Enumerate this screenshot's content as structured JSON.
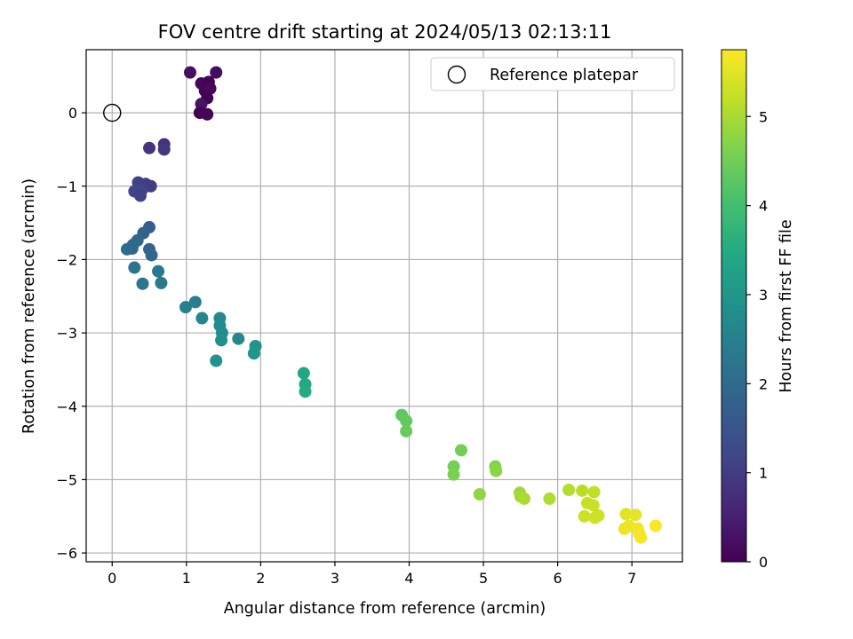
{
  "chart_data": {
    "type": "scatter",
    "title": "FOV centre drift starting at 2024/05/13 02:13:11",
    "xlabel": "Angular distance from reference (arcmin)",
    "ylabel": "Rotation from reference (arcmin)",
    "xlim": [
      -0.35,
      7.68
    ],
    "ylim": [
      -6.12,
      0.86
    ],
    "xticks": [
      0,
      1,
      2,
      3,
      4,
      5,
      6,
      7
    ],
    "yticks": [
      0,
      -1,
      -2,
      -3,
      -4,
      -5,
      -6
    ],
    "grid": true,
    "legend": {
      "position": "top-right",
      "entries": [
        "Reference platepar"
      ]
    },
    "reference_point": {
      "name": "Reference platepar",
      "x": 0,
      "y": 0
    },
    "colorbar": {
      "label": "Hours from first FF file",
      "colormap": "viridis",
      "range": [
        0,
        5.75
      ],
      "ticks": [
        0,
        1,
        2,
        3,
        4,
        5
      ]
    },
    "series": [
      {
        "points": [
          {
            "x": 1.05,
            "y": 0.55,
            "c": 0.25
          },
          {
            "x": 1.4,
            "y": 0.55,
            "c": 0.2
          },
          {
            "x": 1.2,
            "y": 0.4,
            "c": 0.1
          },
          {
            "x": 1.3,
            "y": 0.42,
            "c": 0.05
          },
          {
            "x": 1.25,
            "y": 0.3,
            "c": 0.08
          },
          {
            "x": 1.32,
            "y": 0.33,
            "c": 0.12
          },
          {
            "x": 1.28,
            "y": 0.2,
            "c": 0.0
          },
          {
            "x": 1.2,
            "y": 0.12,
            "c": 0.3
          },
          {
            "x": 1.18,
            "y": 0.0,
            "c": 0.02
          },
          {
            "x": 1.28,
            "y": -0.02,
            "c": 0.06
          },
          {
            "x": 0.5,
            "y": -0.48,
            "c": 0.85
          },
          {
            "x": 0.7,
            "y": -0.43,
            "c": 0.8
          },
          {
            "x": 0.7,
            "y": -0.5,
            "c": 0.9
          },
          {
            "x": 0.35,
            "y": -0.95,
            "c": 1.1
          },
          {
            "x": 0.45,
            "y": -0.97,
            "c": 1.05
          },
          {
            "x": 0.52,
            "y": -1.0,
            "c": 1.0
          },
          {
            "x": 0.3,
            "y": -1.07,
            "c": 1.2
          },
          {
            "x": 0.4,
            "y": -1.05,
            "c": 1.15
          },
          {
            "x": 0.38,
            "y": -1.13,
            "c": 1.12
          },
          {
            "x": 0.5,
            "y": -1.56,
            "c": 1.7
          },
          {
            "x": 0.42,
            "y": -1.64,
            "c": 1.8
          },
          {
            "x": 0.34,
            "y": -1.74,
            "c": 1.9
          },
          {
            "x": 0.28,
            "y": -1.8,
            "c": 2.0
          },
          {
            "x": 0.2,
            "y": -1.86,
            "c": 2.05
          },
          {
            "x": 0.27,
            "y": -1.85,
            "c": 1.95
          },
          {
            "x": 0.5,
            "y": -1.86,
            "c": 1.85
          },
          {
            "x": 0.53,
            "y": -1.94,
            "c": 1.9
          },
          {
            "x": 0.3,
            "y": -2.11,
            "c": 2.2
          },
          {
            "x": 0.62,
            "y": -2.16,
            "c": 2.3
          },
          {
            "x": 0.41,
            "y": -2.33,
            "c": 2.25
          },
          {
            "x": 0.66,
            "y": -2.32,
            "c": 2.35
          },
          {
            "x": 0.99,
            "y": -2.65,
            "c": 2.5
          },
          {
            "x": 1.12,
            "y": -2.58,
            "c": 2.45
          },
          {
            "x": 1.21,
            "y": -2.8,
            "c": 2.6
          },
          {
            "x": 1.45,
            "y": -2.8,
            "c": 2.7
          },
          {
            "x": 1.45,
            "y": -2.9,
            "c": 2.75
          },
          {
            "x": 1.48,
            "y": -3.0,
            "c": 2.8
          },
          {
            "x": 1.47,
            "y": -3.1,
            "c": 2.85
          },
          {
            "x": 1.7,
            "y": -3.08,
            "c": 2.7
          },
          {
            "x": 1.4,
            "y": -3.38,
            "c": 2.9
          },
          {
            "x": 1.93,
            "y": -3.18,
            "c": 2.95
          },
          {
            "x": 1.91,
            "y": -3.28,
            "c": 3.0
          },
          {
            "x": 2.58,
            "y": -3.55,
            "c": 3.4
          },
          {
            "x": 2.6,
            "y": -3.7,
            "c": 3.45
          },
          {
            "x": 2.6,
            "y": -3.8,
            "c": 3.5
          },
          {
            "x": 3.9,
            "y": -4.12,
            "c": 4.3
          },
          {
            "x": 3.96,
            "y": -4.2,
            "c": 4.35
          },
          {
            "x": 3.96,
            "y": -4.34,
            "c": 4.4
          },
          {
            "x": 4.7,
            "y": -4.6,
            "c": 4.5
          },
          {
            "x": 4.6,
            "y": -4.82,
            "c": 4.55
          },
          {
            "x": 4.6,
            "y": -4.93,
            "c": 4.6
          },
          {
            "x": 5.16,
            "y": -4.82,
            "c": 4.7
          },
          {
            "x": 5.17,
            "y": -4.88,
            "c": 4.75
          },
          {
            "x": 4.95,
            "y": -5.2,
            "c": 4.8
          },
          {
            "x": 5.49,
            "y": -5.18,
            "c": 4.9
          },
          {
            "x": 5.5,
            "y": -5.23,
            "c": 4.95
          },
          {
            "x": 5.55,
            "y": -5.26,
            "c": 5.0
          },
          {
            "x": 5.89,
            "y": -5.26,
            "c": 5.05
          },
          {
            "x": 6.15,
            "y": -5.14,
            "c": 5.1
          },
          {
            "x": 6.33,
            "y": -5.15,
            "c": 5.15
          },
          {
            "x": 6.49,
            "y": -5.17,
            "c": 5.2
          },
          {
            "x": 6.4,
            "y": -5.32,
            "c": 5.25
          },
          {
            "x": 6.48,
            "y": -5.35,
            "c": 5.28
          },
          {
            "x": 6.36,
            "y": -5.5,
            "c": 5.3
          },
          {
            "x": 6.5,
            "y": -5.52,
            "c": 5.35
          },
          {
            "x": 6.55,
            "y": -5.49,
            "c": 5.32
          },
          {
            "x": 6.92,
            "y": -5.47,
            "c": 5.5
          },
          {
            "x": 7.05,
            "y": -5.48,
            "c": 5.55
          },
          {
            "x": 6.9,
            "y": -5.67,
            "c": 5.6
          },
          {
            "x": 6.96,
            "y": -5.63,
            "c": 5.62
          },
          {
            "x": 7.08,
            "y": -5.67,
            "c": 5.65
          },
          {
            "x": 7.1,
            "y": -5.74,
            "c": 5.68
          },
          {
            "x": 7.12,
            "y": -5.79,
            "c": 5.7
          },
          {
            "x": 7.32,
            "y": -5.63,
            "c": 5.72
          }
        ]
      }
    ]
  }
}
